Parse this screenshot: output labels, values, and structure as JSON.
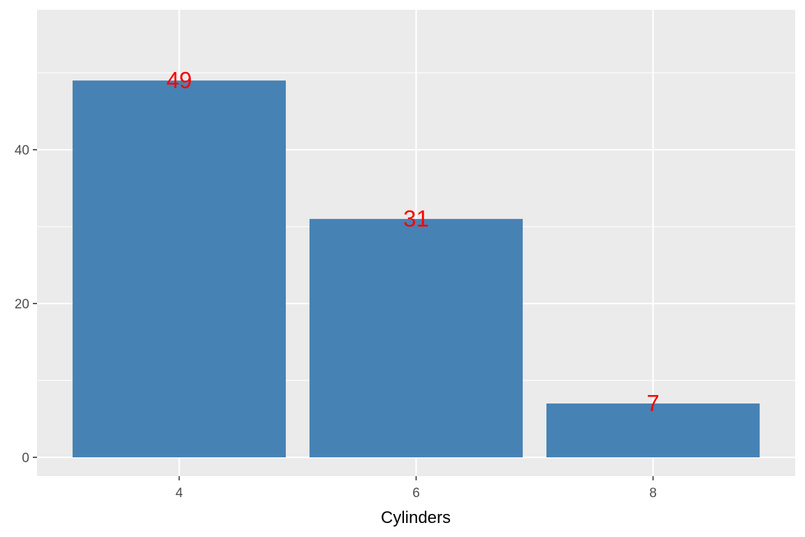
{
  "chart_data": {
    "type": "bar",
    "categories": [
      "4",
      "6",
      "8"
    ],
    "values": [
      49,
      31,
      7
    ],
    "data_labels": [
      "49",
      "31",
      "7"
    ],
    "title": "",
    "xlabel": "Cylinders",
    "ylabel": "",
    "ylim": [
      -2.45,
      58.2
    ],
    "y_ticks": [
      0,
      20,
      40
    ],
    "y_tick_labels": [
      "0",
      "20",
      "40"
    ],
    "grid": true,
    "legend": "none",
    "colors": {
      "bar": "#4682b4",
      "data_label": "#ff0000",
      "panel_background": "#ebebeb",
      "grid_line": "#ffffff",
      "tick_label": "#4d4d4d",
      "axis_title": "#000000"
    }
  }
}
